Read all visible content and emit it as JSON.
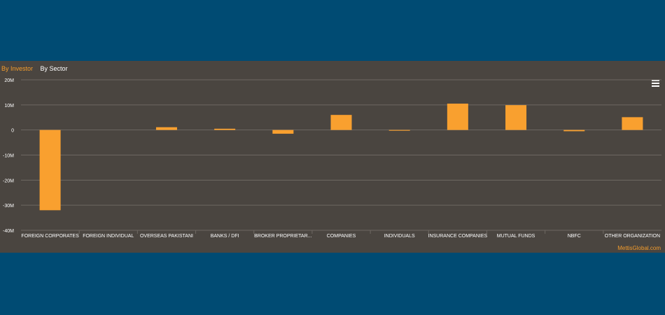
{
  "tabs": [
    {
      "label": "By Investor",
      "active": true
    },
    {
      "label": "By Sector",
      "active": false
    }
  ],
  "menu_icon": "hamburger-menu-icon",
  "credit": "MettisGlobal.com",
  "colors": {
    "background": "#004b73",
    "panel": "#4a4540",
    "bar": "#f9a02f",
    "grid": "#6e6862",
    "text": "#ffffff",
    "accent": "#f39c2c"
  },
  "chart_data": {
    "type": "bar",
    "title": "",
    "xlabel": "",
    "ylabel": "",
    "ylim": [
      -40000000,
      20000000
    ],
    "yticks": [
      {
        "value": 20000000,
        "label": "20M"
      },
      {
        "value": 10000000,
        "label": "10M"
      },
      {
        "value": 0,
        "label": "0"
      },
      {
        "value": -10000000,
        "label": "-10M"
      },
      {
        "value": -20000000,
        "label": "-20M"
      },
      {
        "value": -30000000,
        "label": "-30M"
      },
      {
        "value": -40000000,
        "label": "-40M"
      }
    ],
    "grid": true,
    "categories": [
      "FOREIGN CORPORATES",
      "FOREIGN INDIVIDUAL",
      "OVERSEAS PAKISTANI",
      "BANKS / DFI",
      "BROKER PROPRIETAR...",
      "COMPANIES",
      "INDIVIDUALS",
      "INSURANCE COMPANIES",
      "MUTUAL FUNDS",
      "NBFC",
      "OTHER ORGANIZATION"
    ],
    "values": [
      -32000000,
      0,
      1100000,
      500000,
      -1500000,
      6000000,
      -300000,
      10500000,
      9900000,
      -500000,
      5100000
    ]
  }
}
